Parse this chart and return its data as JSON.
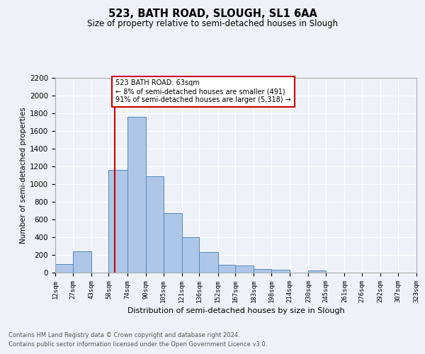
{
  "title": "523, BATH ROAD, SLOUGH, SL1 6AA",
  "subtitle": "Size of property relative to semi-detached houses in Slough",
  "xlabel": "Distribution of semi-detached houses by size in Slough",
  "ylabel": "Number of semi-detached properties",
  "footnote1": "Contains HM Land Registry data © Crown copyright and database right 2024.",
  "footnote2": "Contains public sector information licensed under the Open Government Licence v3.0.",
  "annotation_title": "523 BATH ROAD: 63sqm",
  "annotation_line1": "← 8% of semi-detached houses are smaller (491)",
  "annotation_line2": "91% of semi-detached houses are larger (5,318) →",
  "property_size": 63,
  "bin_edges": [
    12,
    27,
    43,
    58,
    74,
    90,
    105,
    121,
    136,
    152,
    167,
    183,
    198,
    214,
    230,
    245,
    261,
    276,
    292,
    307,
    323
  ],
  "bar_heights": [
    100,
    240,
    0,
    1160,
    1760,
    1090,
    670,
    400,
    230,
    90,
    80,
    40,
    30,
    0,
    25,
    0,
    0,
    0,
    0,
    0
  ],
  "bar_color": "#aec6e8",
  "bar_edge_color": "#5589bb",
  "vline_color": "#cc0000",
  "vline_x": 63,
  "annotation_box_color": "#cc0000",
  "background_color": "#eef2f8",
  "grid_color": "#ffffff",
  "ylim": [
    0,
    2200
  ],
  "yticks": [
    0,
    200,
    400,
    600,
    800,
    1000,
    1200,
    1400,
    1600,
    1800,
    2000,
    2200
  ],
  "tick_labels": [
    "12sqm",
    "27sqm",
    "43sqm",
    "58sqm",
    "74sqm",
    "90sqm",
    "105sqm",
    "121sqm",
    "136sqm",
    "152sqm",
    "167sqm",
    "183sqm",
    "198sqm",
    "214sqm",
    "230sqm",
    "245sqm",
    "261sqm",
    "276sqm",
    "292sqm",
    "307sqm",
    "323sqm"
  ]
}
